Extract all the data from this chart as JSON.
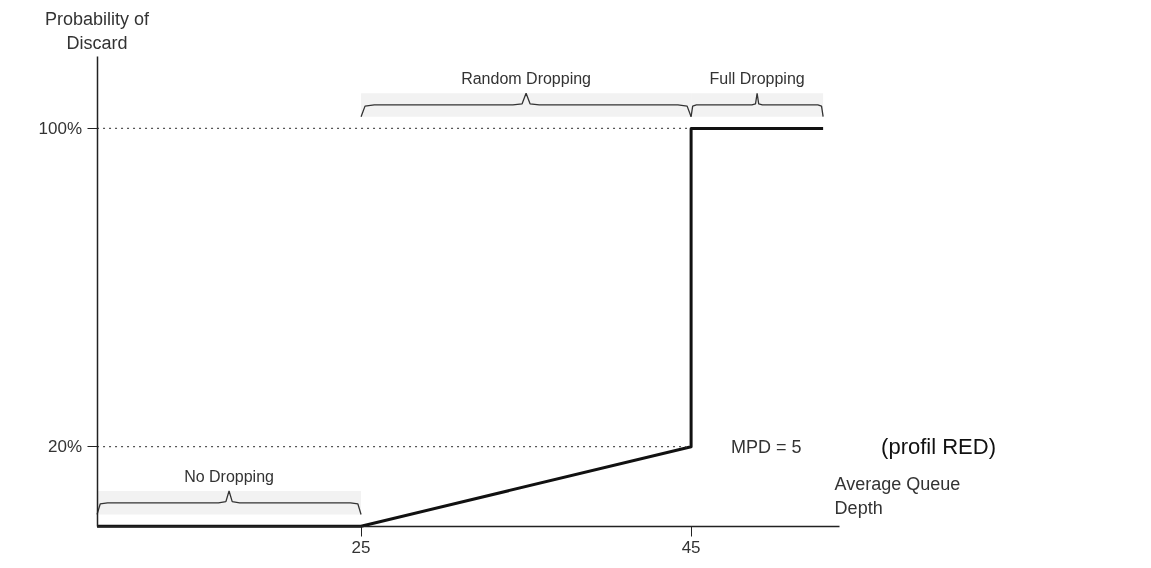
{
  "chart_data": {
    "type": "line",
    "xlabel": "Average Queue Depth",
    "ylabel": "Probability of Discard",
    "x": [
      9,
      25,
      45,
      45,
      53
    ],
    "series": [
      {
        "color": "#111111",
        "values": [
          0,
          0,
          20,
          100,
          100
        ]
      }
    ],
    "xlim": [
      9,
      54
    ],
    "ylim": [
      0,
      118
    ],
    "xticks": [
      25,
      45
    ],
    "yticks": [
      {
        "value": 20,
        "label": "20%"
      },
      {
        "value": 100,
        "label": "100%"
      }
    ],
    "grid": false,
    "marker": "none",
    "line_style": "solid",
    "ref_lines": [
      {
        "axis": "y",
        "value": 20,
        "line_style": "dotted"
      },
      {
        "axis": "y",
        "value": 100,
        "line_style": "dotted"
      }
    ],
    "bands": [
      {
        "axis": "x",
        "from": 9,
        "to": 25,
        "label": "No Dropping",
        "color": "#f2f2f2"
      },
      {
        "axis": "x",
        "from": 25,
        "to": 45,
        "label": "Random Dropping",
        "color": "#f2f2f2"
      },
      {
        "axis": "x",
        "from": 45,
        "to": 53,
        "label": "Full Dropping",
        "color": "#f2f2f2"
      }
    ],
    "annotations": [
      "MPD = 5",
      "(profil RED)"
    ]
  }
}
